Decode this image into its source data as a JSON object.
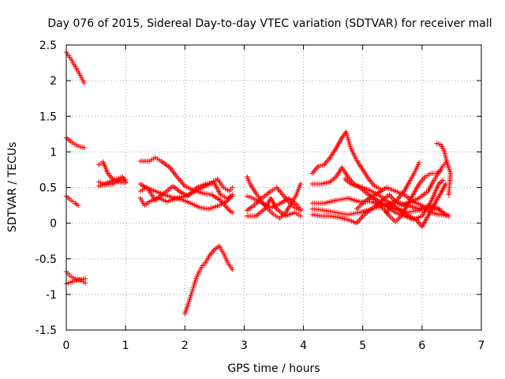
{
  "chart_data": {
    "type": "scatter",
    "title": "Day 076 of 2015, Sidereal Day-to-day VTEC variation (SDTVAR) for receiver mall",
    "xlabel": "GPS time / hours",
    "ylabel": "SDTVAR / TECUs",
    "xlim": [
      0,
      7
    ],
    "ylim": [
      -1.5,
      2.5
    ],
    "xticks": [
      "0",
      "1",
      "2",
      "3",
      "4",
      "5",
      "6",
      "7"
    ],
    "yticks": [
      "2.5",
      "2",
      "1.5",
      "1",
      "0.5",
      "0",
      "-0.5",
      "-1",
      "-1.5"
    ],
    "grid": true,
    "marker": "+",
    "color": "#ff0000",
    "tracks": [
      {
        "name": "trk01",
        "points": [
          [
            0.0,
            2.4
          ],
          [
            0.08,
            2.3
          ],
          [
            0.15,
            2.2
          ],
          [
            0.22,
            2.1
          ],
          [
            0.3,
            1.97
          ]
        ]
      },
      {
        "name": "trk02",
        "points": [
          [
            0.0,
            1.2
          ],
          [
            0.1,
            1.13
          ],
          [
            0.2,
            1.08
          ],
          [
            0.3,
            1.06
          ]
        ]
      },
      {
        "name": "trk03",
        "points": [
          [
            0.0,
            0.38
          ],
          [
            0.08,
            0.32
          ],
          [
            0.15,
            0.28
          ],
          [
            0.2,
            0.25
          ]
        ]
      },
      {
        "name": "trk04",
        "points": [
          [
            0.0,
            -0.68
          ],
          [
            0.08,
            -0.75
          ],
          [
            0.15,
            -0.78
          ],
          [
            0.25,
            -0.8
          ],
          [
            0.32,
            -0.84
          ]
        ]
      },
      {
        "name": "trk05",
        "points": [
          [
            0.0,
            -0.85
          ],
          [
            0.1,
            -0.82
          ],
          [
            0.2,
            -0.8
          ],
          [
            0.32,
            -0.78
          ]
        ]
      },
      {
        "name": "trk06",
        "points": [
          [
            0.55,
            0.82
          ],
          [
            0.62,
            0.86
          ],
          [
            0.7,
            0.7
          ],
          [
            0.78,
            0.62
          ],
          [
            0.88,
            0.58
          ],
          [
            1.0,
            0.57
          ]
        ]
      },
      {
        "name": "trk07",
        "points": [
          [
            0.55,
            0.58
          ],
          [
            0.65,
            0.54
          ],
          [
            0.78,
            0.55
          ],
          [
            0.9,
            0.6
          ],
          [
            1.0,
            0.61
          ]
        ]
      },
      {
        "name": "trk08",
        "points": [
          [
            0.55,
            0.52
          ],
          [
            0.7,
            0.57
          ],
          [
            0.85,
            0.62
          ],
          [
            0.95,
            0.65
          ],
          [
            1.0,
            0.58
          ]
        ]
      },
      {
        "name": "trk09",
        "points": [
          [
            1.25,
            0.87
          ],
          [
            1.4,
            0.87
          ],
          [
            1.5,
            0.92
          ],
          [
            1.6,
            0.87
          ],
          [
            1.75,
            0.78
          ],
          [
            1.82,
            0.7
          ],
          [
            1.9,
            0.62
          ],
          [
            2.0,
            0.52
          ],
          [
            2.15,
            0.46
          ],
          [
            2.3,
            0.42
          ],
          [
            2.45,
            0.4
          ],
          [
            2.6,
            0.32
          ],
          [
            2.75,
            0.18
          ],
          [
            2.8,
            0.15
          ]
        ]
      },
      {
        "name": "trk10",
        "points": [
          [
            1.25,
            0.55
          ],
          [
            1.38,
            0.48
          ],
          [
            1.5,
            0.32
          ],
          [
            1.65,
            0.42
          ],
          [
            1.8,
            0.52
          ],
          [
            1.92,
            0.44
          ],
          [
            2.05,
            0.38
          ],
          [
            2.2,
            0.5
          ],
          [
            2.35,
            0.55
          ],
          [
            2.5,
            0.56
          ],
          [
            2.6,
            0.4
          ],
          [
            2.7,
            0.35
          ],
          [
            2.8,
            0.38
          ]
        ]
      },
      {
        "name": "trk11",
        "points": [
          [
            1.25,
            0.45
          ],
          [
            1.35,
            0.5
          ],
          [
            1.5,
            0.45
          ],
          [
            1.65,
            0.4
          ],
          [
            1.8,
            0.36
          ],
          [
            1.95,
            0.33
          ],
          [
            2.1,
            0.28
          ],
          [
            2.25,
            0.22
          ],
          [
            2.4,
            0.2
          ],
          [
            2.55,
            0.24
          ],
          [
            2.7,
            0.3
          ],
          [
            2.8,
            0.4
          ]
        ]
      },
      {
        "name": "trk12",
        "points": [
          [
            1.25,
            0.35
          ],
          [
            1.32,
            0.25
          ],
          [
            1.4,
            0.3
          ],
          [
            1.55,
            0.36
          ],
          [
            1.7,
            0.3
          ],
          [
            1.85,
            0.35
          ],
          [
            2.0,
            0.38
          ],
          [
            2.15,
            0.43
          ],
          [
            2.3,
            0.5
          ],
          [
            2.45,
            0.57
          ],
          [
            2.55,
            0.62
          ],
          [
            2.65,
            0.5
          ],
          [
            2.75,
            0.45
          ],
          [
            2.8,
            0.5
          ]
        ]
      },
      {
        "name": "trk13",
        "points": [
          [
            2.0,
            -1.27
          ],
          [
            2.05,
            -1.15
          ],
          [
            2.1,
            -1.02
          ],
          [
            2.15,
            -0.88
          ],
          [
            2.2,
            -0.75
          ],
          [
            2.28,
            -0.62
          ],
          [
            2.35,
            -0.55
          ],
          [
            2.42,
            -0.45
          ],
          [
            2.5,
            -0.37
          ],
          [
            2.58,
            -0.32
          ],
          [
            2.65,
            -0.42
          ],
          [
            2.72,
            -0.55
          ],
          [
            2.8,
            -0.65
          ]
        ]
      },
      {
        "name": "trk14",
        "points": [
          [
            3.05,
            0.65
          ],
          [
            3.1,
            0.55
          ],
          [
            3.2,
            0.42
          ],
          [
            3.3,
            0.3
          ],
          [
            3.4,
            0.2
          ],
          [
            3.5,
            0.12
          ],
          [
            3.6,
            0.07
          ],
          [
            3.7,
            0.15
          ],
          [
            3.8,
            0.28
          ],
          [
            3.88,
            0.4
          ],
          [
            3.95,
            0.55
          ]
        ]
      },
      {
        "name": "trk15",
        "points": [
          [
            3.05,
            0.38
          ],
          [
            3.15,
            0.35
          ],
          [
            3.3,
            0.28
          ],
          [
            3.45,
            0.22
          ],
          [
            3.6,
            0.27
          ],
          [
            3.75,
            0.35
          ],
          [
            3.9,
            0.25
          ],
          [
            3.95,
            0.2
          ]
        ]
      },
      {
        "name": "trk16",
        "points": [
          [
            3.05,
            0.18
          ],
          [
            3.15,
            0.24
          ],
          [
            3.3,
            0.35
          ],
          [
            3.45,
            0.45
          ],
          [
            3.55,
            0.5
          ],
          [
            3.65,
            0.4
          ],
          [
            3.75,
            0.3
          ],
          [
            3.85,
            0.22
          ],
          [
            3.95,
            0.18
          ]
        ]
      },
      {
        "name": "trk17",
        "points": [
          [
            3.05,
            0.1
          ],
          [
            3.2,
            0.1
          ],
          [
            3.35,
            0.2
          ],
          [
            3.45,
            0.35
          ],
          [
            3.55,
            0.2
          ],
          [
            3.7,
            0.1
          ],
          [
            3.85,
            0.15
          ],
          [
            3.95,
            0.1
          ]
        ]
      },
      {
        "name": "trk18",
        "points": [
          [
            4.15,
            0.7
          ],
          [
            4.25,
            0.8
          ],
          [
            4.35,
            0.82
          ],
          [
            4.45,
            0.92
          ],
          [
            4.55,
            1.05
          ],
          [
            4.65,
            1.2
          ],
          [
            4.72,
            1.28
          ],
          [
            4.8,
            1.05
          ],
          [
            4.9,
            0.88
          ],
          [
            5.0,
            0.75
          ],
          [
            5.1,
            0.62
          ],
          [
            5.2,
            0.52
          ],
          [
            5.3,
            0.48
          ]
        ]
      },
      {
        "name": "trk19",
        "points": [
          [
            4.15,
            0.55
          ],
          [
            4.3,
            0.55
          ],
          [
            4.45,
            0.58
          ],
          [
            4.55,
            0.65
          ],
          [
            4.65,
            0.78
          ],
          [
            4.75,
            0.65
          ],
          [
            4.85,
            0.55
          ],
          [
            5.0,
            0.5
          ],
          [
            5.15,
            0.45
          ],
          [
            5.3,
            0.38
          ],
          [
            5.45,
            0.28
          ],
          [
            5.6,
            0.2
          ],
          [
            5.75,
            0.12
          ],
          [
            5.9,
            0.05
          ],
          [
            6.0,
            -0.05
          ],
          [
            6.1,
            0.1
          ],
          [
            6.2,
            0.25
          ],
          [
            6.3,
            0.4
          ],
          [
            6.4,
            0.55
          ]
        ]
      },
      {
        "name": "trk20",
        "points": [
          [
            4.15,
            0.28
          ],
          [
            4.35,
            0.28
          ],
          [
            4.55,
            0.32
          ],
          [
            4.75,
            0.35
          ],
          [
            4.95,
            0.3
          ],
          [
            5.15,
            0.3
          ],
          [
            5.35,
            0.25
          ],
          [
            5.55,
            0.2
          ],
          [
            5.75,
            0.15
          ],
          [
            5.95,
            0.18
          ],
          [
            6.15,
            0.22
          ],
          [
            6.3,
            0.18
          ],
          [
            6.45,
            0.1
          ]
        ]
      },
      {
        "name": "trk21",
        "points": [
          [
            4.15,
            0.2
          ],
          [
            4.35,
            0.18
          ],
          [
            4.55,
            0.15
          ],
          [
            4.75,
            0.12
          ],
          [
            4.95,
            0.15
          ],
          [
            5.15,
            0.2
          ],
          [
            5.35,
            0.25
          ],
          [
            5.55,
            0.3
          ],
          [
            5.75,
            0.25
          ],
          [
            5.95,
            0.2
          ],
          [
            6.15,
            0.25
          ],
          [
            6.3,
            0.2
          ]
        ]
      },
      {
        "name": "trk22",
        "points": [
          [
            4.15,
            0.12
          ],
          [
            4.3,
            0.1
          ],
          [
            4.45,
            0.1
          ],
          [
            4.6,
            0.08
          ],
          [
            4.75,
            0.05
          ],
          [
            4.9,
            0.0
          ],
          [
            5.0,
            0.1
          ],
          [
            5.15,
            0.2
          ],
          [
            5.3,
            0.3
          ],
          [
            5.45,
            0.4
          ],
          [
            5.55,
            0.3
          ],
          [
            5.65,
            0.25
          ],
          [
            5.8,
            0.3
          ],
          [
            5.95,
            0.35
          ],
          [
            6.1,
            0.45
          ],
          [
            6.2,
            0.6
          ],
          [
            6.28,
            0.7
          ],
          [
            6.35,
            0.8
          ],
          [
            6.4,
            0.85
          ]
        ]
      },
      {
        "name": "trk23",
        "points": [
          [
            4.7,
            0.62
          ],
          [
            4.8,
            0.55
          ],
          [
            4.95,
            0.5
          ],
          [
            5.1,
            0.4
          ],
          [
            5.25,
            0.32
          ],
          [
            5.4,
            0.25
          ],
          [
            5.55,
            0.15
          ],
          [
            5.7,
            0.1
          ],
          [
            5.85,
            0.05
          ],
          [
            6.0,
            0.1
          ],
          [
            6.15,
            0.3
          ],
          [
            6.28,
            0.55
          ],
          [
            6.35,
            0.6
          ]
        ]
      },
      {
        "name": "trk24",
        "points": [
          [
            5.05,
            0.3
          ],
          [
            5.15,
            0.35
          ],
          [
            5.25,
            0.3
          ],
          [
            5.35,
            0.2
          ],
          [
            5.45,
            0.1
          ],
          [
            5.55,
            0.02
          ],
          [
            5.65,
            0.1
          ],
          [
            5.75,
            0.25
          ],
          [
            5.85,
            0.4
          ],
          [
            5.95,
            0.55
          ],
          [
            6.05,
            0.65
          ],
          [
            6.15,
            0.7
          ],
          [
            6.25,
            0.7
          ],
          [
            6.32,
            0.75
          ]
        ]
      },
      {
        "name": "trk25",
        "points": [
          [
            5.4,
            0.15
          ],
          [
            5.5,
            0.25
          ],
          [
            5.6,
            0.35
          ],
          [
            5.7,
            0.45
          ],
          [
            5.8,
            0.6
          ],
          [
            5.88,
            0.72
          ],
          [
            5.95,
            0.85
          ]
        ]
      },
      {
        "name": "trk26",
        "points": [
          [
            6.25,
            1.12
          ],
          [
            6.32,
            1.1
          ],
          [
            6.38,
            1.0
          ],
          [
            6.42,
            0.85
          ],
          [
            6.48,
            0.7
          ],
          [
            6.45,
            0.4
          ]
        ]
      },
      {
        "name": "trk27",
        "points": [
          [
            4.9,
            0.2
          ],
          [
            5.0,
            0.28
          ],
          [
            5.1,
            0.35
          ],
          [
            5.25,
            0.42
          ],
          [
            5.4,
            0.5
          ],
          [
            5.55,
            0.45
          ],
          [
            5.7,
            0.4
          ],
          [
            5.85,
            0.3
          ],
          [
            6.0,
            0.25
          ],
          [
            6.15,
            0.15
          ],
          [
            6.3,
            0.12
          ],
          [
            6.45,
            0.1
          ]
        ]
      }
    ]
  }
}
